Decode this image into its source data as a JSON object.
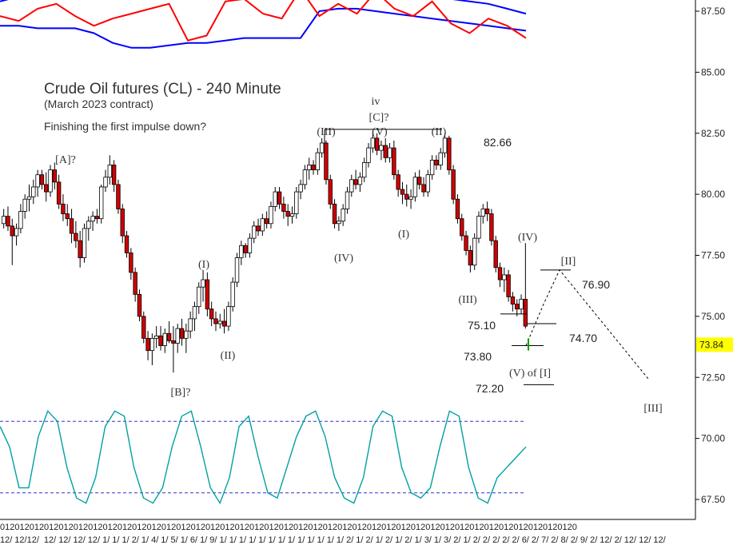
{
  "chart_data": {
    "type": "candlestick",
    "title": "Crude Oil futures (CL) - 240 Minute",
    "subtitle": "(March 2023 contract)",
    "comment": "Finishing the first impulse down?",
    "y_axis": {
      "min": 67.0,
      "max": 88.5,
      "ticks": [
        "67.50",
        "70.00",
        "72.50",
        "75.00",
        "77.50",
        "80.00",
        "82.50",
        "85.00",
        "87.50"
      ],
      "current_price": "73.84",
      "current_price_color": "#ffff00"
    },
    "x_axis": {
      "tick_labels": [
        "12/",
        "12/12/",
        "12/",
        "12/",
        "12/",
        "12/",
        "1/",
        "1/",
        "1/",
        "2/",
        "1/",
        "4/",
        "1/",
        "5/",
        "1/",
        "6/",
        "1/",
        "9/",
        "1/",
        "1/",
        "1/",
        "1/",
        "1/",
        "1/",
        "1/",
        "1/",
        "1/",
        "1/",
        "1/",
        "1/",
        "1/",
        "2/",
        "1/",
        "2/",
        "1/",
        "2/",
        "1/",
        "2/",
        "1/",
        "3/",
        "1/",
        "3/",
        "2/",
        "1/",
        "2/",
        "2/",
        "2/",
        "2/",
        "2/",
        "6/",
        "2/",
        "7/",
        "2/",
        "8/",
        "2/",
        "9/",
        "2/",
        "12/",
        "2/",
        "12/",
        "12/",
        "12/"
      ],
      "top_row": "0120120120120120120120120120120120120120120120120120120120120120120120120120120120120120120120120120120120120120120120"
    },
    "candles": [
      [
        78.8,
        79.4,
        78.6,
        79.1
      ],
      [
        79.1,
        79.5,
        78.5,
        78.7
      ],
      [
        78.7,
        79.0,
        77.1,
        78.3
      ],
      [
        78.3,
        78.8,
        77.9,
        78.6
      ],
      [
        78.6,
        79.6,
        78.4,
        79.3
      ],
      [
        79.3,
        80.0,
        79.0,
        79.8
      ],
      [
        79.8,
        80.4,
        79.3,
        79.9
      ],
      [
        79.9,
        80.6,
        79.6,
        80.3
      ],
      [
        80.3,
        81.0,
        79.9,
        80.8
      ],
      [
        80.8,
        81.0,
        80.2,
        80.4
      ],
      [
        80.4,
        80.9,
        79.7,
        80.1
      ],
      [
        80.1,
        81.2,
        79.9,
        81.0
      ],
      [
        81.0,
        81.3,
        80.2,
        80.5
      ],
      [
        80.5,
        80.8,
        79.4,
        79.6
      ],
      [
        79.6,
        80.0,
        78.9,
        79.2
      ],
      [
        79.2,
        79.6,
        78.7,
        79.0
      ],
      [
        79.0,
        79.4,
        78.0,
        78.4
      ],
      [
        78.4,
        78.9,
        77.8,
        78.1
      ],
      [
        78.1,
        78.5,
        77.0,
        77.4
      ],
      [
        77.4,
        78.8,
        77.2,
        78.6
      ],
      [
        78.6,
        79.1,
        78.1,
        78.9
      ],
      [
        78.9,
        79.3,
        78.5,
        79.1
      ],
      [
        79.1,
        79.4,
        78.8,
        79.0
      ],
      [
        79.0,
        80.4,
        78.8,
        80.3
      ],
      [
        80.3,
        81.0,
        80.1,
        80.7
      ],
      [
        80.7,
        81.6,
        80.4,
        81.2
      ],
      [
        81.2,
        81.4,
        80.1,
        80.4
      ],
      [
        80.4,
        80.6,
        79.2,
        79.4
      ],
      [
        79.4,
        79.6,
        78.0,
        78.3
      ],
      [
        78.3,
        78.5,
        77.4,
        77.6
      ],
      [
        77.6,
        77.8,
        76.5,
        76.8
      ],
      [
        76.8,
        77.0,
        75.6,
        75.9
      ],
      [
        75.9,
        76.1,
        74.8,
        75.0
      ],
      [
        75.0,
        75.2,
        73.9,
        74.1
      ],
      [
        74.1,
        74.4,
        73.2,
        73.6
      ],
      [
        73.6,
        74.3,
        73.0,
        74.1
      ],
      [
        74.1,
        74.6,
        73.7,
        74.2
      ],
      [
        74.2,
        74.6,
        73.6,
        73.8
      ],
      [
        73.8,
        74.5,
        73.5,
        74.3
      ],
      [
        74.3,
        74.8,
        73.9,
        74.0
      ],
      [
        74.0,
        74.6,
        72.7,
        73.9
      ],
      [
        73.9,
        74.7,
        73.5,
        74.5
      ],
      [
        74.5,
        74.9,
        73.8,
        74.1
      ],
      [
        74.1,
        74.7,
        73.5,
        74.4
      ],
      [
        74.4,
        75.2,
        74.1,
        74.9
      ],
      [
        74.9,
        75.6,
        74.4,
        75.4
      ],
      [
        75.4,
        76.4,
        75.1,
        76.2
      ],
      [
        76.2,
        76.9,
        75.6,
        76.5
      ],
      [
        76.5,
        76.8,
        75.0,
        75.3
      ],
      [
        75.3,
        75.6,
        74.6,
        74.9
      ],
      [
        74.9,
        75.2,
        74.4,
        74.7
      ],
      [
        74.7,
        75.1,
        74.5,
        74.8
      ],
      [
        74.8,
        75.3,
        74.3,
        74.6
      ],
      [
        74.6,
        75.6,
        74.4,
        75.4
      ],
      [
        75.4,
        76.6,
        75.2,
        76.4
      ],
      [
        76.4,
        77.6,
        76.2,
        77.4
      ],
      [
        77.4,
        78.1,
        77.1,
        77.9
      ],
      [
        77.9,
        78.0,
        77.4,
        77.6
      ],
      [
        77.6,
        78.4,
        77.4,
        78.2
      ],
      [
        78.2,
        78.9,
        78.0,
        78.7
      ],
      [
        78.7,
        79.0,
        78.3,
        78.5
      ],
      [
        78.5,
        79.2,
        78.3,
        79.0
      ],
      [
        79.0,
        79.3,
        78.6,
        78.8
      ],
      [
        78.8,
        79.7,
        78.6,
        79.5
      ],
      [
        79.5,
        80.3,
        79.3,
        80.1
      ],
      [
        80.1,
        80.3,
        79.4,
        79.6
      ],
      [
        79.6,
        79.9,
        79.0,
        79.3
      ],
      [
        79.3,
        79.6,
        78.7,
        79.1
      ],
      [
        79.1,
        79.5,
        78.8,
        79.2
      ],
      [
        79.2,
        80.3,
        79.0,
        80.1
      ],
      [
        80.1,
        80.6,
        79.8,
        80.4
      ],
      [
        80.4,
        81.2,
        80.2,
        81.0
      ],
      [
        81.0,
        81.5,
        80.6,
        81.2
      ],
      [
        81.2,
        81.4,
        80.8,
        81.0
      ],
      [
        81.0,
        81.9,
        80.8,
        81.7
      ],
      [
        81.7,
        82.3,
        81.5,
        82.1
      ],
      [
        82.1,
        82.2,
        80.4,
        80.6
      ],
      [
        80.6,
        80.8,
        79.4,
        79.6
      ],
      [
        79.6,
        79.8,
        78.6,
        78.8
      ],
      [
        78.8,
        79.1,
        78.5,
        78.9
      ],
      [
        78.9,
        79.6,
        78.7,
        79.4
      ],
      [
        79.4,
        80.3,
        79.2,
        80.1
      ],
      [
        80.1,
        80.8,
        79.9,
        80.6
      ],
      [
        80.6,
        81.0,
        80.2,
        80.4
      ],
      [
        80.4,
        80.9,
        80.1,
        80.7
      ],
      [
        80.7,
        81.5,
        80.5,
        81.3
      ],
      [
        81.3,
        82.1,
        81.1,
        81.9
      ],
      [
        81.9,
        82.6,
        81.7,
        82.3
      ],
      [
        82.3,
        82.5,
        81.6,
        81.8
      ],
      [
        81.8,
        82.2,
        81.4,
        82.0
      ],
      [
        82.0,
        82.3,
        81.3,
        81.5
      ],
      [
        81.5,
        82.1,
        81.3,
        81.9
      ],
      [
        81.9,
        82.2,
        80.6,
        80.8
      ],
      [
        80.8,
        81.0,
        79.9,
        80.2
      ],
      [
        80.2,
        80.5,
        79.6,
        80.0
      ],
      [
        80.0,
        80.4,
        79.5,
        79.8
      ],
      [
        79.8,
        80.2,
        79.4,
        79.9
      ],
      [
        79.9,
        80.9,
        79.7,
        80.7
      ],
      [
        80.7,
        81.0,
        80.2,
        80.4
      ],
      [
        80.4,
        80.7,
        79.9,
        80.1
      ],
      [
        80.1,
        81.0,
        79.9,
        80.8
      ],
      [
        80.8,
        81.6,
        80.6,
        81.4
      ],
      [
        81.4,
        81.6,
        81.0,
        81.2
      ],
      [
        81.2,
        81.9,
        81.0,
        81.7
      ],
      [
        81.7,
        82.5,
        81.5,
        82.3
      ],
      [
        82.3,
        82.4,
        80.8,
        81.0
      ],
      [
        81.0,
        81.2,
        79.6,
        79.8
      ],
      [
        79.8,
        80.0,
        78.8,
        79.0
      ],
      [
        79.0,
        79.2,
        78.1,
        78.3
      ],
      [
        78.3,
        78.5,
        77.5,
        77.7
      ],
      [
        77.7,
        77.9,
        76.8,
        77.1
      ],
      [
        77.1,
        78.4,
        76.9,
        78.2
      ],
      [
        78.2,
        79.3,
        78.0,
        79.1
      ],
      [
        79.1,
        79.6,
        78.8,
        79.4
      ],
      [
        79.4,
        79.7,
        78.9,
        79.2
      ],
      [
        79.2,
        79.4,
        77.9,
        78.1
      ],
      [
        78.1,
        78.3,
        76.8,
        77.0
      ],
      [
        77.0,
        77.2,
        76.2,
        76.5
      ],
      [
        76.5,
        77.0,
        76.0,
        76.7
      ],
      [
        76.7,
        76.9,
        75.6,
        75.8
      ],
      [
        75.8,
        76.0,
        75.2,
        75.5
      ],
      [
        75.5,
        75.7,
        75.0,
        75.3
      ],
      [
        75.3,
        75.9,
        75.1,
        75.7
      ],
      [
        75.7,
        78.0,
        74.5,
        74.6
      ]
    ],
    "wave_labels": [
      "[A]?",
      "[B]?",
      "(I)",
      "(II)",
      "(III)",
      "iv",
      "[C]?",
      "(V)",
      "(II)",
      "(IV)",
      "(I)",
      "(III)",
      "(IV)",
      "[II]",
      "(V) of [I]",
      "[III]"
    ],
    "price_levels": [
      "82.66",
      "76.90",
      "75.10",
      "74.70",
      "73.80",
      "72.20"
    ],
    "top_indicator": {
      "series": [
        {
          "color": "#0000ff",
          "values": [
            87.9,
            88.1,
            88.2,
            88.3,
            88.3,
            88.4,
            88.4,
            88.3,
            88.3,
            88.2,
            88.2,
            88.2,
            88.1,
            88.0,
            88.0,
            88.0,
            88.1,
            88.2,
            88.3,
            88.4,
            88.4,
            88.3,
            88.2,
            88.1,
            88.0,
            87.9,
            87.8,
            87.6,
            87.4
          ]
        },
        {
          "color": "#0000ff",
          "values": [
            86.9,
            86.9,
            86.8,
            86.8,
            86.8,
            86.6,
            86.2,
            86.0,
            86.0,
            86.1,
            86.2,
            86.2,
            86.3,
            86.4,
            86.4,
            86.4,
            86.4,
            87.5,
            87.6,
            87.6,
            87.5,
            87.4,
            87.3,
            87.2,
            87.1,
            87.0,
            86.9,
            86.8,
            86.7
          ]
        },
        {
          "color": "#ff0000",
          "values": [
            87.3,
            87.1,
            87.6,
            87.8,
            87.3,
            86.9,
            87.2,
            87.4,
            87.6,
            87.8,
            86.3,
            86.5,
            87.9,
            88.0,
            87.4,
            87.2,
            88.4,
            87.3,
            87.8,
            87.4,
            88.3,
            87.6,
            87.3,
            87.9,
            87.0,
            86.6,
            87.2,
            86.9,
            86.4
          ]
        }
      ]
    },
    "oscillator": {
      "levels": [
        0.85,
        0.15
      ],
      "values": [
        0.8,
        0.6,
        0.2,
        0.2,
        0.7,
        0.95,
        0.85,
        0.4,
        0.1,
        0.05,
        0.3,
        0.8,
        0.95,
        0.9,
        0.4,
        0.1,
        0.05,
        0.2,
        0.6,
        0.9,
        0.95,
        0.6,
        0.2,
        0.05,
        0.3,
        0.8,
        0.9,
        0.5,
        0.15,
        0.1,
        0.4,
        0.7,
        0.9,
        0.95,
        0.7,
        0.3,
        0.1,
        0.05,
        0.3,
        0.8,
        0.95,
        0.9,
        0.4,
        0.15,
        0.1,
        0.2,
        0.6,
        0.95,
        0.9,
        0.4,
        0.1,
        0.05,
        0.3,
        0.4,
        0.5,
        0.6
      ]
    }
  }
}
